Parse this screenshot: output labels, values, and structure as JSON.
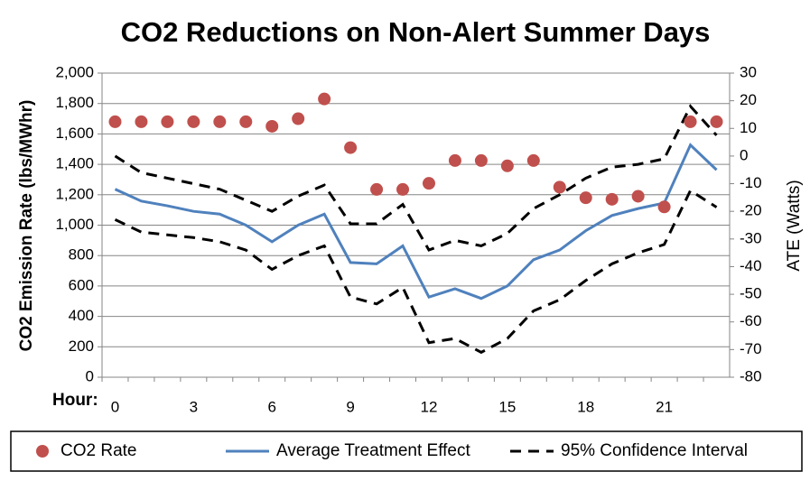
{
  "chart_data": {
    "type": "combo",
    "title": "CO2 Reductions on Non-Alert Summer Days",
    "x_label": "Hour:",
    "y_label": "CO2 Emission Rate (lbs/MWhr)",
    "y2_label": "ATE (Watts)",
    "categories": [
      "0",
      null,
      null,
      "3",
      null,
      null,
      "6",
      null,
      null,
      "9",
      null,
      null,
      "12",
      null,
      null,
      "15",
      null,
      null,
      "18",
      null,
      null,
      "21",
      null,
      null
    ],
    "ylim": [
      0,
      2000
    ],
    "yticks": [
      0,
      200,
      400,
      600,
      800,
      {
        "value": 1000,
        "label": "1,000"
      },
      {
        "value": 1200,
        "label": "1,200"
      },
      {
        "value": 1400,
        "label": "1,400"
      },
      {
        "value": 1600,
        "label": "1,600"
      },
      {
        "value": 1800,
        "label": "1,800"
      },
      {
        "value": 2000,
        "label": "2,000"
      }
    ],
    "y2lim": [
      -80,
      30
    ],
    "y2ticks": [
      -80,
      -70,
      -60,
      -50,
      -40,
      -30,
      -20,
      -10,
      0,
      10,
      20,
      30
    ],
    "grid": true,
    "legend": "bottom",
    "series": [
      {
        "name": "CO2 Rate",
        "type": "scatter",
        "color": "#c0504d",
        "values": [
          1680,
          1680,
          1680,
          1680,
          1680,
          1680,
          1650,
          1700,
          1830,
          1510,
          1235,
          1235,
          1275,
          1425,
          1425,
          1390,
          1425,
          1250,
          1180,
          1170,
          1190,
          1120,
          1680,
          1680
        ]
      },
      {
        "name": "Average Treatment Effect",
        "type": "line",
        "axis": "y2",
        "color": "#4f81bd",
        "values": [
          -12,
          -16.3,
          -18,
          -20,
          -21,
          -25,
          -31,
          -25,
          -21,
          -38.5,
          -39,
          -32.5,
          -51,
          -48,
          -51.5,
          -47,
          -37.5,
          -34,
          -27,
          -21.5,
          -19,
          -17,
          4,
          -5
        ]
      },
      {
        "name": "95% Confidence Interval",
        "type": "band",
        "axis": "y2",
        "color": "#000000",
        "dashed": true,
        "upper": [
          0,
          -6,
          -8,
          -10,
          -12,
          -16,
          -20,
          -14.5,
          -10.5,
          -24.5,
          -24.5,
          -17.5,
          -34,
          -30.5,
          -32.5,
          -28,
          -19,
          -14,
          -8,
          -4,
          -3,
          -1,
          18,
          7.5
        ],
        "lower": [
          -23,
          -27.5,
          -28.5,
          -29.5,
          -31,
          -34,
          -41,
          -36,
          -32.5,
          -51,
          -53.5,
          -47.5,
          -67.5,
          -66,
          -71,
          -66,
          -56,
          -52,
          -45,
          -39,
          -35,
          -32,
          -12.5,
          -18.5
        ]
      }
    ]
  }
}
